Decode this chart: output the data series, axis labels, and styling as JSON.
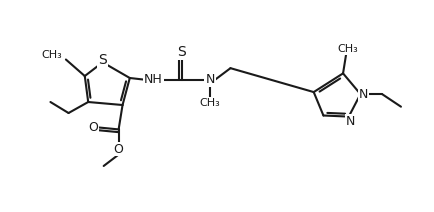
{
  "background": "#ffffff",
  "line_color": "#1a1a1a",
  "line_width": 1.5,
  "font_size": 9,
  "fig_width": 4.34,
  "fig_height": 2.12,
  "dpi": 100,
  "xlim": [
    -0.5,
    10.5
  ],
  "ylim": [
    0.0,
    5.2
  ]
}
